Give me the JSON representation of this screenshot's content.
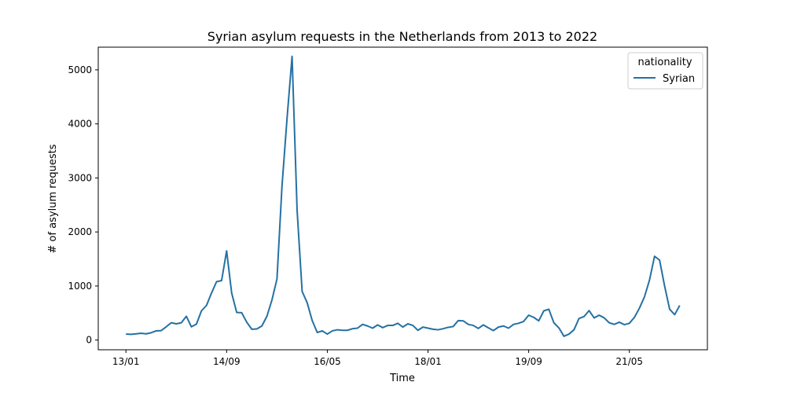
{
  "chart_data": {
    "type": "line",
    "title": "Syrian asylum requests in the Netherlands from 2013 to 2022",
    "xlabel": "Time",
    "ylabel": "# of asylum requests",
    "ylim": [
      -180,
      5420
    ],
    "yticks": [
      0,
      1000,
      2000,
      3000,
      4000,
      5000
    ],
    "xticks": [
      {
        "index": 0,
        "label": "13/01"
      },
      {
        "index": 20,
        "label": "14/09"
      },
      {
        "index": 40,
        "label": "16/05"
      },
      {
        "index": 60,
        "label": "18/01"
      },
      {
        "index": 80,
        "label": "19/09"
      },
      {
        "index": 100,
        "label": "21/05"
      }
    ],
    "xlim": [
      -5.5,
      115.5
    ],
    "grid": false,
    "legend": {
      "title": "nationality",
      "position": "top-right"
    },
    "colors": {
      "series": "#2471a3"
    },
    "series": [
      {
        "name": "Syrian",
        "values": [
          110,
          105,
          115,
          125,
          115,
          135,
          170,
          175,
          245,
          320,
          300,
          320,
          440,
          245,
          295,
          540,
          640,
          870,
          1080,
          1100,
          1650,
          870,
          510,
          505,
          330,
          200,
          205,
          260,
          440,
          740,
          1130,
          2850,
          4100,
          5250,
          2400,
          900,
          690,
          360,
          140,
          170,
          110,
          170,
          190,
          180,
          180,
          210,
          220,
          290,
          260,
          220,
          280,
          230,
          270,
          270,
          310,
          240,
          300,
          270,
          180,
          240,
          220,
          200,
          190,
          210,
          235,
          250,
          360,
          355,
          290,
          270,
          215,
          280,
          225,
          175,
          240,
          260,
          220,
          290,
          310,
          345,
          460,
          420,
          355,
          540,
          570,
          320,
          225,
          70,
          110,
          190,
          400,
          435,
          545,
          410,
          460,
          410,
          320,
          290,
          330,
          285,
          310,
          420,
          590,
          800,
          1110,
          1550,
          1480,
          1000,
          570,
          470,
          640
        ]
      }
    ]
  }
}
